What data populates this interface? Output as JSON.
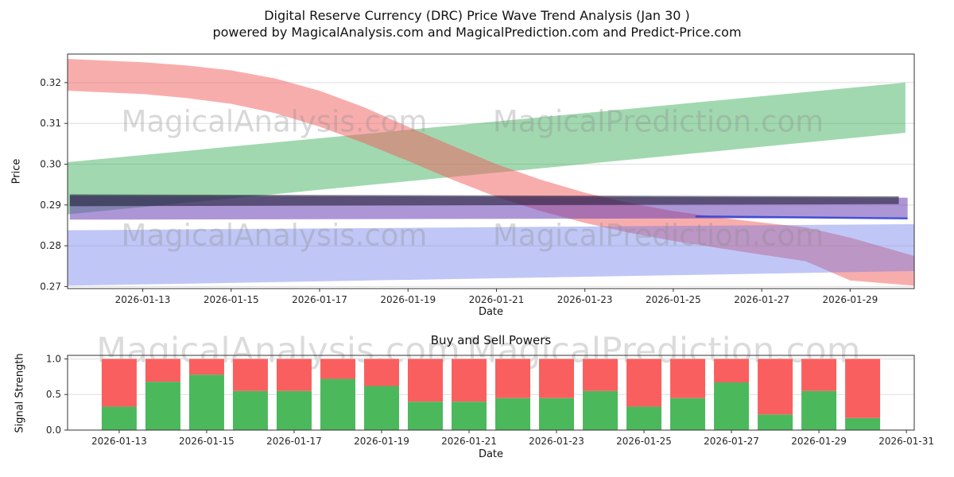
{
  "page": {
    "title_line1": "Digital Reserve Currency (DRC) Price Wave Trend Analysis (Jan 30 )",
    "title_line2": "powered by MagicalAnalysis.com and MagicalPrediction.com and Predict-Price.com"
  },
  "watermarks": {
    "analysis": "MagicalAnalysis.com",
    "prediction": "MagicalPrediction.com"
  },
  "chart_data": [
    {
      "type": "area",
      "name": "price-wave-trend",
      "title": "",
      "xlabel": "Date",
      "ylabel": "Price",
      "grid": "horizontal",
      "xlim": [
        11.3,
        30.45
      ],
      "ylim": [
        0.2695,
        0.327
      ],
      "yticks": [
        "0.27",
        "0.28",
        "0.29",
        "0.30",
        "0.31",
        "0.32"
      ],
      "xticks": [
        {
          "x": 13,
          "label": "2026-01-13"
        },
        {
          "x": 15,
          "label": "2026-01-15"
        },
        {
          "x": 17,
          "label": "2026-01-17"
        },
        {
          "x": 19,
          "label": "2026-01-19"
        },
        {
          "x": 21,
          "label": "2026-01-21"
        },
        {
          "x": 23,
          "label": "2026-01-23"
        },
        {
          "x": 25,
          "label": "2026-01-25"
        },
        {
          "x": 27,
          "label": "2026-01-27"
        },
        {
          "x": 29,
          "label": "2026-01-29"
        }
      ],
      "bands": [
        {
          "name": "uptrend-green-band",
          "color": "#2fa84f",
          "opacity": 0.45,
          "x": [
            11.3,
            30.25
          ],
          "hi": [
            0.3005,
            0.32
          ],
          "lo": [
            0.2877,
            0.3077
          ]
        },
        {
          "name": "downtrend-red-band",
          "color": "#f25c5c",
          "opacity": 0.5,
          "x": [
            11.3,
            13,
            14,
            15,
            16,
            17,
            18,
            19,
            20,
            21,
            22,
            23,
            24,
            25,
            26,
            27,
            28,
            29,
            30.45
          ],
          "hi": [
            0.3258,
            0.325,
            0.3242,
            0.323,
            0.321,
            0.318,
            0.314,
            0.3092,
            0.3045,
            0.3,
            0.2962,
            0.293,
            0.2905,
            0.2885,
            0.287,
            0.2857,
            0.2845,
            0.282,
            0.2775
          ],
          "lo": [
            0.318,
            0.3172,
            0.3162,
            0.3148,
            0.3125,
            0.3092,
            0.3052,
            0.3008,
            0.2962,
            0.292,
            0.2885,
            0.2856,
            0.2832,
            0.2812,
            0.2795,
            0.2778,
            0.2762,
            0.2715,
            0.2702
          ]
        },
        {
          "name": "support-blue-band",
          "color": "#6272e8",
          "opacity": 0.4,
          "x": [
            11.3,
            30.45
          ],
          "hi": [
            0.2838,
            0.2853
          ],
          "lo": [
            0.2702,
            0.2738
          ]
        },
        {
          "name": "channel-purple-band",
          "color": "#6a3fb5",
          "opacity": 0.55,
          "x": [
            11.35,
            30.3
          ],
          "hi": [
            0.2923,
            0.2918
          ],
          "lo": [
            0.2864,
            0.2868
          ]
        },
        {
          "name": "core-dark-band",
          "color": "#15152a",
          "opacity": 0.55,
          "x": [
            11.35,
            30.1
          ],
          "hi": [
            0.2926,
            0.2921
          ],
          "lo": [
            0.2897,
            0.2902
          ]
        }
      ],
      "lines": [
        {
          "name": "median-blue-line",
          "color": "#2e3fd4",
          "opacity": 0.85,
          "width": 2.5,
          "x": [
            25.5,
            30.3
          ],
          "y": [
            0.2872,
            0.2867
          ]
        }
      ]
    },
    {
      "type": "bar",
      "name": "buy-sell-powers",
      "title": "Buy and Sell Powers",
      "xlabel": "Date",
      "ylabel": "Signal Strength",
      "grid": "horizontal",
      "xlim": [
        11.82,
        31.18
      ],
      "ylim": [
        0,
        1.05
      ],
      "yticks": [
        "0.0",
        "0.5",
        "1.0"
      ],
      "xticks": [
        {
          "x": 13,
          "label": "2026-01-13"
        },
        {
          "x": 15,
          "label": "2026-01-15"
        },
        {
          "x": 17,
          "label": "2026-01-17"
        },
        {
          "x": 19,
          "label": "2026-01-19"
        },
        {
          "x": 21,
          "label": "2026-01-21"
        },
        {
          "x": 23,
          "label": "2026-01-23"
        },
        {
          "x": 25,
          "label": "2026-01-25"
        },
        {
          "x": 27,
          "label": "2026-01-27"
        },
        {
          "x": 29,
          "label": "2026-01-29"
        },
        {
          "x": 31,
          "label": "2026-01-31"
        }
      ],
      "categories": [
        "2026-01-13",
        "2026-01-14",
        "2026-01-15",
        "2026-01-16",
        "2026-01-17",
        "2026-01-18",
        "2026-01-19",
        "2026-01-20",
        "2026-01-21",
        "2026-01-22",
        "2026-01-23",
        "2026-01-24",
        "2026-01-25",
        "2026-01-26",
        "2026-01-27",
        "2026-01-28",
        "2026-01-29",
        "2026-01-30"
      ],
      "series": [
        {
          "name": "Buy",
          "color": "#4cb85c",
          "values": [
            0.33,
            0.68,
            0.78,
            0.55,
            0.55,
            0.72,
            0.62,
            0.4,
            0.4,
            0.45,
            0.45,
            0.55,
            0.33,
            0.45,
            0.67,
            0.22,
            0.55,
            0.17
          ]
        },
        {
          "name": "Sell",
          "color": "#fa5f5f",
          "values": [
            0.67,
            0.32,
            0.22,
            0.45,
            0.45,
            0.28,
            0.38,
            0.6,
            0.6,
            0.55,
            0.55,
            0.45,
            0.67,
            0.55,
            0.33,
            0.78,
            0.45,
            0.83
          ]
        }
      ]
    }
  ]
}
